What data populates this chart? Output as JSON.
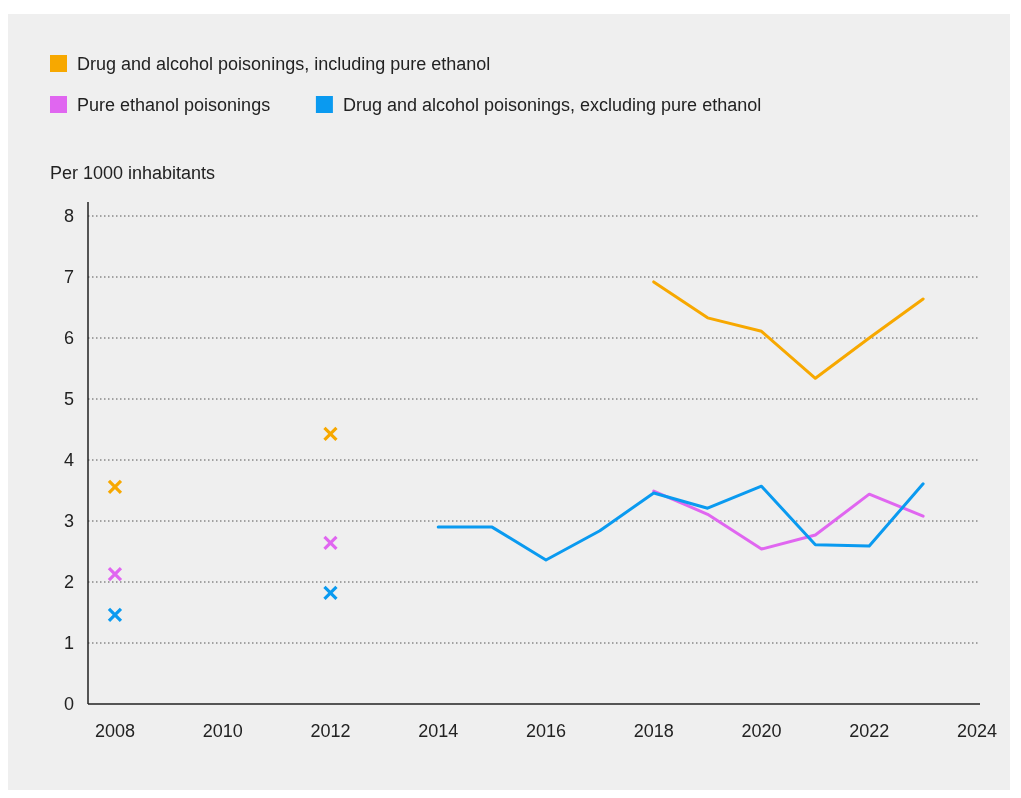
{
  "chart_data": {
    "type": "line",
    "ylabel": "Per 1000 inhabitants",
    "xlim": [
      2007.5,
      2024
    ],
    "xticks": [
      2008,
      2010,
      2012,
      2014,
      2016,
      2018,
      2020,
      2022,
      2024
    ],
    "ylim": [
      0,
      8
    ],
    "yticks": [
      0,
      1,
      2,
      3,
      4,
      5,
      6,
      7,
      8
    ],
    "grid": "y",
    "legend": "top left",
    "line_style": "solid",
    "series": [
      {
        "name": "Drug and alcohol poisonings, including pure ethanol",
        "color": "#f7a800",
        "x": [
          2018,
          2019,
          2020,
          2021,
          2022,
          2023
        ],
        "values": [
          6.92,
          6.33,
          6.11,
          5.34,
          6.0,
          6.64
        ]
      },
      {
        "name": "Pure ethanol poisonings",
        "color": "#e066f0",
        "x": [
          2018,
          2019,
          2020,
          2021,
          2022,
          2023
        ],
        "values": [
          3.49,
          3.11,
          2.54,
          2.77,
          3.44,
          3.08
        ]
      },
      {
        "name": "Drug and alcohol poisonings, excluding pure ethanol",
        "color": "#0a9af0",
        "x": [
          2014,
          2015,
          2016,
          2017,
          2018,
          2019,
          2020,
          2021,
          2022,
          2023
        ],
        "values": [
          2.9,
          2.9,
          2.36,
          2.84,
          3.46,
          3.21,
          3.57,
          2.61,
          2.59,
          3.61
        ]
      },
      {
        "type": "scatter",
        "marker": "cross",
        "color": "#f7a800",
        "x": [
          2008,
          2012
        ],
        "values": [
          3.56,
          4.43
        ]
      },
      {
        "type": "scatter",
        "marker": "cross",
        "color": "#e066f0",
        "x": [
          2008,
          2012
        ],
        "values": [
          2.13,
          2.64
        ]
      },
      {
        "type": "scatter",
        "marker": "cross",
        "color": "#0a9af0",
        "x": [
          2008,
          2012
        ],
        "values": [
          1.46,
          1.82
        ]
      }
    ]
  }
}
